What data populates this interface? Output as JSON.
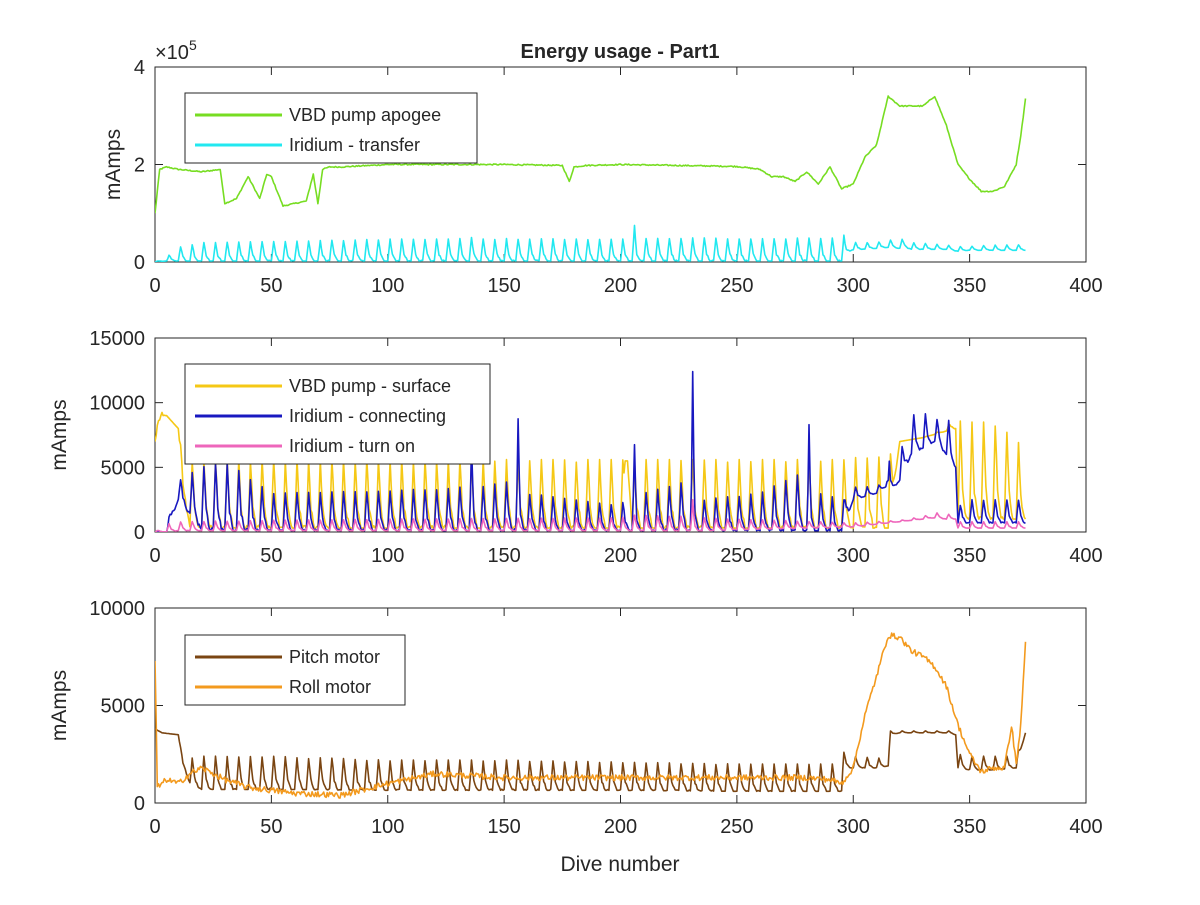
{
  "figure": {
    "title": "Energy usage - Part1",
    "xlabel": "Dive number"
  },
  "chart_data": [
    {
      "type": "line",
      "title": "Energy usage - Part1",
      "xlabel": "",
      "ylabel": "mAmps",
      "xlim": [
        0,
        400
      ],
      "ylim": [
        0,
        400000
      ],
      "xticks": [
        "0",
        "50",
        "100",
        "150",
        "200",
        "250",
        "300",
        "350",
        "400"
      ],
      "yticks": [
        "0",
        "2",
        "4"
      ],
      "y_exponent_label": "×10",
      "y_exponent_power": "5",
      "grid": false,
      "legend_position": "top-left",
      "series": [
        {
          "name": "VBD pump apogee",
          "color": "#77dd22",
          "shape": "smooth",
          "x": [
            0,
            2,
            5,
            10,
            20,
            28,
            30,
            35,
            40,
            45,
            48,
            50,
            55,
            60,
            65,
            68,
            70,
            72,
            75,
            80,
            100,
            150,
            175,
            178,
            180,
            185,
            200,
            250,
            260,
            265,
            270,
            275,
            280,
            285,
            290,
            295,
            300,
            305,
            310,
            315,
            320,
            330,
            335,
            340,
            345,
            350,
            355,
            360,
            365,
            370,
            372,
            374
          ],
          "y": [
            100000,
            190000,
            195000,
            190000,
            185000,
            190000,
            120000,
            130000,
            175000,
            130000,
            180000,
            175000,
            115000,
            120000,
            125000,
            180000,
            120000,
            190000,
            195000,
            195000,
            200000,
            200000,
            198000,
            165000,
            195000,
            198000,
            200000,
            196000,
            190000,
            175000,
            175000,
            165000,
            185000,
            160000,
            195000,
            150000,
            160000,
            215000,
            240000,
            340000,
            320000,
            320000,
            340000,
            280000,
            200000,
            170000,
            145000,
            145000,
            155000,
            200000,
            260000,
            335000
          ]
        },
        {
          "name": "Iridium - transfer",
          "color": "#22e8f0",
          "shape": "spiky",
          "spike_period": 5,
          "x": [
            0,
            5,
            10,
            15,
            20,
            50,
            100,
            130,
            135,
            140,
            150,
            200,
            205,
            206,
            207,
            210,
            250,
            290,
            295,
            296,
            297,
            300,
            310,
            315,
            320,
            322,
            325,
            340,
            345,
            350,
            360,
            370,
            374
          ],
          "baseline": [
            0,
            2000,
            2000,
            2000,
            2000,
            2000,
            2000,
            2000,
            2000,
            2000,
            2000,
            2000,
            2000,
            2000,
            2000,
            2000,
            2000,
            2000,
            2000,
            2000,
            20000,
            25000,
            28000,
            30000,
            28000,
            30000,
            26000,
            26000,
            22000,
            24000,
            24000,
            24000,
            24000
          ],
          "peak": [
            0,
            10000,
            30000,
            35000,
            40000,
            42000,
            47000,
            47000,
            52000,
            47000,
            48000,
            47000,
            55000,
            75000,
            52000,
            50000,
            49000,
            49000,
            49000,
            55000,
            42000,
            40000,
            40000,
            45000,
            45000,
            48000,
            40000,
            35000,
            32000,
            32000,
            35000,
            35000,
            37000
          ]
        }
      ]
    },
    {
      "type": "line",
      "title": "",
      "xlabel": "",
      "ylabel": "mAmps",
      "xlim": [
        0,
        400
      ],
      "ylim": [
        0,
        15000
      ],
      "xticks": [
        "0",
        "50",
        "100",
        "150",
        "200",
        "250",
        "300",
        "350",
        "400"
      ],
      "yticks": [
        "0",
        "5000",
        "10000",
        "15000"
      ],
      "grid": false,
      "legend_position": "top-left",
      "series": [
        {
          "name": "VBD pump - surface",
          "color": "#f5c816",
          "shape": "spiky",
          "spike_period": 5,
          "x": [
            0,
            3,
            5,
            10,
            12,
            15,
            30,
            100,
            200,
            201,
            202,
            203,
            205,
            210,
            250,
            295,
            296,
            297,
            300,
            310,
            315,
            320,
            330,
            340,
            344,
            345,
            350,
            360,
            370,
            374
          ],
          "baseline": [
            7000,
            9000,
            9000,
            8000,
            3000,
            400,
            300,
            300,
            300,
            300,
            5500,
            5500,
            300,
            300,
            300,
            300,
            300,
            300,
            300,
            300,
            300,
            7000,
            7300,
            7800,
            8000,
            1000,
            1000,
            1000,
            1000,
            1000
          ],
          "peak": [
            7000,
            10800,
            9000,
            8000,
            5500,
            5600,
            5600,
            5600,
            5600,
            5600,
            5500,
            5500,
            5600,
            5600,
            5600,
            5600,
            5800,
            5800,
            5800,
            5800,
            5800,
            7000,
            7300,
            8000,
            9300,
            8600,
            8500,
            8500,
            7300,
            6000
          ]
        },
        {
          "name": "Iridium - connecting",
          "color": "#1818c0",
          "shape": "spiky",
          "spike_period": 5,
          "x": [
            0,
            5,
            8,
            10,
            20,
            30,
            50,
            100,
            135,
            136,
            137,
            140,
            155,
            156,
            157,
            160,
            200,
            205,
            206,
            207,
            210,
            230,
            231,
            232,
            235,
            260,
            275,
            280,
            281,
            282,
            285,
            296,
            297,
            300,
            310,
            314,
            315,
            316,
            320,
            325,
            330,
            335,
            340,
            344,
            345,
            350,
            360,
            370,
            374
          ],
          "baseline": [
            0,
            0,
            1500,
            2500,
            200,
            100,
            100,
            100,
            100,
            100,
            100,
            100,
            100,
            100,
            100,
            100,
            100,
            100,
            100,
            100,
            100,
            100,
            100,
            100,
            100,
            100,
            100,
            100,
            100,
            100,
            100,
            100,
            1000,
            2500,
            3000,
            3500,
            4000,
            3000,
            4000,
            6000,
            6500,
            7000,
            6000,
            5000,
            700,
            700,
            700,
            700,
            700
          ],
          "peak": [
            0,
            0,
            3500,
            4000,
            5000,
            5500,
            3000,
            3200,
            3500,
            7000,
            4000,
            3500,
            4000,
            8800,
            4000,
            3000,
            2000,
            3500,
            7000,
            3000,
            3000,
            4000,
            12400,
            4000,
            2500,
            3000,
            4500,
            4000,
            8300,
            3500,
            3000,
            2500,
            4200,
            3500,
            3500,
            4000,
            10800,
            4000,
            6000,
            9000,
            9300,
            8500,
            9500,
            6000,
            2000,
            2500,
            2500,
            2500,
            2400
          ]
        },
        {
          "name": "Iridium - turn on",
          "color": "#ee66bb",
          "shape": "spiky",
          "spike_period": 5,
          "x": [
            0,
            5,
            10,
            50,
            100,
            200,
            205,
            230,
            231,
            232,
            235,
            300,
            310,
            320,
            330,
            335,
            340,
            344,
            345,
            350,
            374
          ],
          "baseline": [
            0,
            0,
            100,
            100,
            100,
            100,
            100,
            100,
            100,
            100,
            100,
            400,
            600,
            800,
            1000,
            1100,
            1000,
            1000,
            300,
            300,
            300
          ],
          "peak": [
            0,
            600,
            800,
            900,
            1000,
            1100,
            1300,
            1200,
            2500,
            1200,
            1100,
            700,
            800,
            900,
            1200,
            1500,
            1400,
            1300,
            800,
            800,
            800
          ]
        }
      ]
    },
    {
      "type": "line",
      "title": "",
      "xlabel": "Dive number",
      "ylabel": "mAmps",
      "xlim": [
        0,
        400
      ],
      "ylim": [
        0,
        10000
      ],
      "xticks": [
        "0",
        "50",
        "100",
        "150",
        "200",
        "250",
        "300",
        "350",
        "400"
      ],
      "yticks": [
        "0",
        "5000",
        "10000"
      ],
      "grid": false,
      "legend_position": "top-left",
      "series": [
        {
          "name": "Pitch motor",
          "color": "#7a4512",
          "shape": "spiky",
          "spike_period": 5,
          "x": [
            0,
            3,
            10,
            12,
            15,
            20,
            50,
            100,
            150,
            200,
            250,
            295,
            296,
            297,
            300,
            310,
            315,
            316,
            320,
            330,
            340,
            344,
            345,
            350,
            360,
            370,
            374
          ],
          "baseline": [
            3800,
            3600,
            3500,
            2000,
            1000,
            700,
            700,
            650,
            650,
            650,
            600,
            600,
            1800,
            1800,
            1800,
            1800,
            1900,
            3500,
            3600,
            3600,
            3600,
            3500,
            1800,
            1700,
            1700,
            1800,
            3600
          ],
          "peak": [
            3800,
            3600,
            3500,
            2200,
            2300,
            2400,
            2400,
            2200,
            2200,
            2100,
            2000,
            2000,
            2600,
            2600,
            2400,
            2300,
            2300,
            3700,
            3700,
            3700,
            3700,
            3700,
            2500,
            2400,
            2400,
            2400,
            3600
          ]
        },
        {
          "name": "Roll motor",
          "color": "#f39a1e",
          "shape": "smooth",
          "jitter": 300,
          "x": [
            0,
            1,
            3,
            5,
            10,
            15,
            20,
            30,
            40,
            60,
            80,
            100,
            120,
            150,
            180,
            200,
            250,
            280,
            290,
            295,
            300,
            305,
            310,
            315,
            320,
            325,
            330,
            335,
            340,
            345,
            350,
            355,
            360,
            365,
            368,
            370,
            372,
            374
          ],
          "y": [
            7300,
            800,
            1000,
            1200,
            1000,
            1500,
            1800,
            1200,
            800,
            500,
            400,
            1000,
            1500,
            1300,
            1300,
            1300,
            1300,
            1300,
            1200,
            1000,
            1800,
            4500,
            6500,
            8600,
            8500,
            7800,
            7500,
            7000,
            6000,
            4000,
            2500,
            1600,
            1800,
            1800,
            4000,
            2000,
            4000,
            8300
          ]
        }
      ]
    }
  ]
}
